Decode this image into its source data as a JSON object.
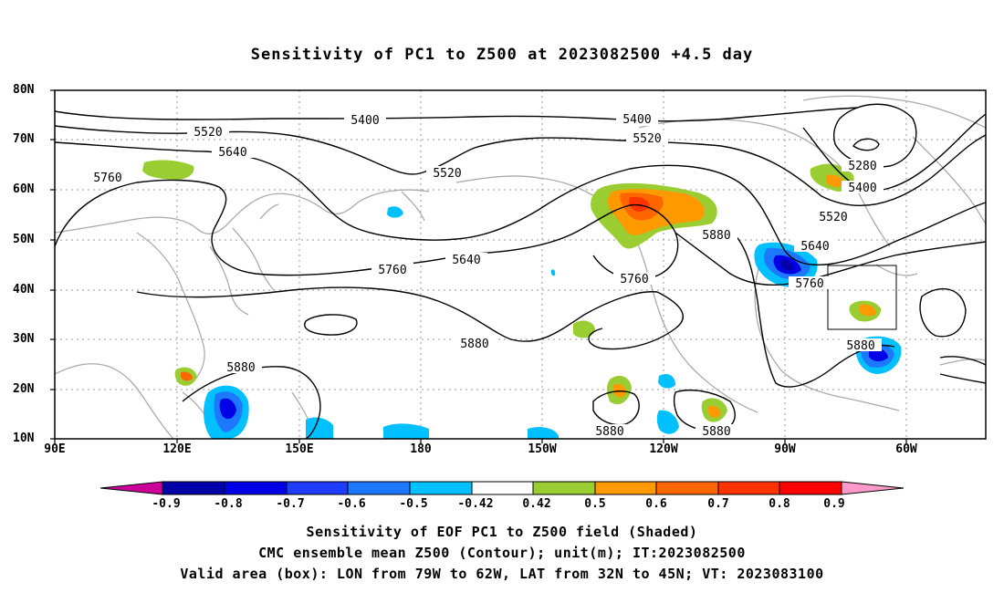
{
  "title": "Sensitivity of PC1 to Z500 at 2023082500 +4.5 day",
  "lat_labels": [
    "80N",
    "70N",
    "60N",
    "50N",
    "40N",
    "30N",
    "20N",
    "10N"
  ],
  "lon_labels": [
    "90E",
    "120E",
    "150E",
    "180",
    "150W",
    "120W",
    "90W",
    "60W"
  ],
  "colorbar": {
    "labels": [
      "-0.9",
      "-0.8",
      "-0.7",
      "-0.6",
      "-0.5",
      "-0.42",
      "0.42",
      "0.5",
      "0.6",
      "0.7",
      "0.8",
      "0.9"
    ],
    "colors": [
      "#cc0099",
      "#0000a8",
      "#0000e6",
      "#1e3cff",
      "#1e78ff",
      "#00c0ff",
      "#ffffff",
      "#9acd32",
      "#ff9900",
      "#ff6600",
      "#ff3300",
      "#ff0000",
      "#ff99cc"
    ]
  },
  "contour_labels": {
    "c5400a": "5400",
    "c5400b": "5400",
    "c5520a": "5520",
    "c5520b": "5520",
    "c5520c": "5520",
    "c5520d": "5520",
    "c5640a": "5640",
    "c5640b": "5640",
    "c5640c": "5640",
    "c5760a": "5760",
    "c5760b": "5760",
    "c5760c": "5760",
    "c5760d": "5760",
    "c5880a": "5880",
    "c5880b": "5880",
    "c5880c": "5880",
    "c5880d": "5880",
    "c5880e": "5880",
    "c5880f": "5880",
    "c5280": "5280",
    "c5400c": "5400"
  },
  "captions": {
    "line1": "Sensitivity of EOF PC1 to Z500 field (Shaded)",
    "line2": "CMC ensemble mean Z500 (Contour); unit(m); IT:2023082500",
    "line3": "Valid area (box): LON from 79W to 62W, LAT from 32N to 45N; VT: 2023083100"
  }
}
